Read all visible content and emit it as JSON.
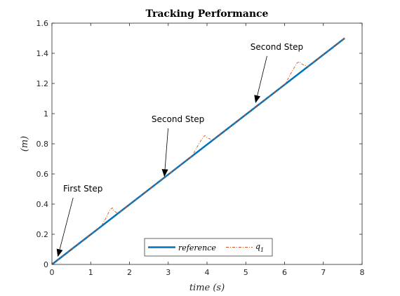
{
  "chart_data": {
    "type": "line",
    "title": "Tracking Performance",
    "xlabel": "time (s)",
    "ylabel": "(m)",
    "xlim": [
      0,
      8
    ],
    "ylim": [
      0,
      1.6
    ],
    "xticks": [
      0,
      1,
      2,
      3,
      4,
      5,
      6,
      7,
      8
    ],
    "xtick_labels": [
      "0",
      "1",
      "2",
      "3",
      "4",
      "5",
      "6",
      "7",
      "8"
    ],
    "yticks": [
      0,
      0.2,
      0.4,
      0.6,
      0.8,
      1.0,
      1.2,
      1.4,
      1.6
    ],
    "ytick_labels": [
      "0",
      "0.2",
      "0.4",
      "0.6",
      "0.8",
      "1",
      "1.2",
      "1.4",
      "1.6"
    ],
    "grid": false,
    "legend_position": "bottom-center",
    "series": [
      {
        "name": "reference",
        "style": "solid",
        "color": "#0072BD",
        "x": [
          0,
          7.55
        ],
        "y": [
          0,
          1.5
        ]
      },
      {
        "name": "q_1",
        "label_main": "q",
        "label_sub": "1",
        "style": "dash-dot",
        "color": "#D95319",
        "x": [
          0,
          1.27,
          1.4,
          1.5,
          1.56,
          1.6,
          1.7,
          3.62,
          3.78,
          3.9,
          3.95,
          4.0,
          4.15,
          6.02,
          6.18,
          6.32,
          6.38,
          6.45,
          6.6,
          7.55
        ],
        "y": [
          0,
          0.253,
          0.31,
          0.365,
          0.375,
          0.355,
          0.338,
          0.72,
          0.795,
          0.845,
          0.855,
          0.84,
          0.825,
          1.198,
          1.275,
          1.335,
          1.345,
          1.328,
          1.312,
          1.5
        ]
      }
    ],
    "annotations": [
      {
        "text": "First Step",
        "text_x": 0.8,
        "text_y": 0.47,
        "arrow_x": 0.15,
        "arrow_y": 0.05
      },
      {
        "text": "Second Step",
        "text_x": 3.25,
        "text_y": 0.93,
        "arrow_x": 2.9,
        "arrow_y": 0.58
      },
      {
        "text": "Second Step",
        "text_x": 5.8,
        "text_y": 1.41,
        "arrow_x": 5.25,
        "arrow_y": 1.07
      }
    ]
  }
}
